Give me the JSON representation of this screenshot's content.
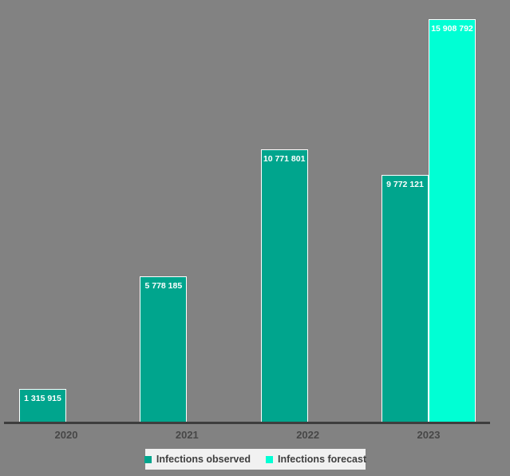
{
  "chart_data": {
    "type": "bar",
    "title": "",
    "categories": [
      "2020",
      "2021",
      "2022",
      "2023"
    ],
    "series": [
      {
        "name": "Infections observed",
        "color": "#00a58d",
        "values": [
          1315915,
          5778185,
          10771801,
          9772121
        ],
        "value_labels": [
          "1 315 915",
          "5 778 185",
          "10 771 801",
          "9 772 121"
        ]
      },
      {
        "name": "Infections forecast",
        "color": "#00ffd4",
        "values": [
          null,
          null,
          null,
          15908792
        ],
        "value_labels": [
          null,
          null,
          null,
          "15 908 792"
        ]
      }
    ],
    "ylim": [
      0,
      15908792
    ],
    "grid": false,
    "legend_position": "bottom-center",
    "value_label_color": "#ffffff",
    "axis_line_color": "#3e3e3e",
    "tick_label_color": "#474747",
    "background_color": "#828282",
    "legend_background": "#f1f1f1"
  },
  "legend": {
    "items": [
      {
        "label": "Infections observed",
        "color": "#00a58d"
      },
      {
        "label": "Infections forecast",
        "color": "#00ffd4"
      }
    ]
  }
}
